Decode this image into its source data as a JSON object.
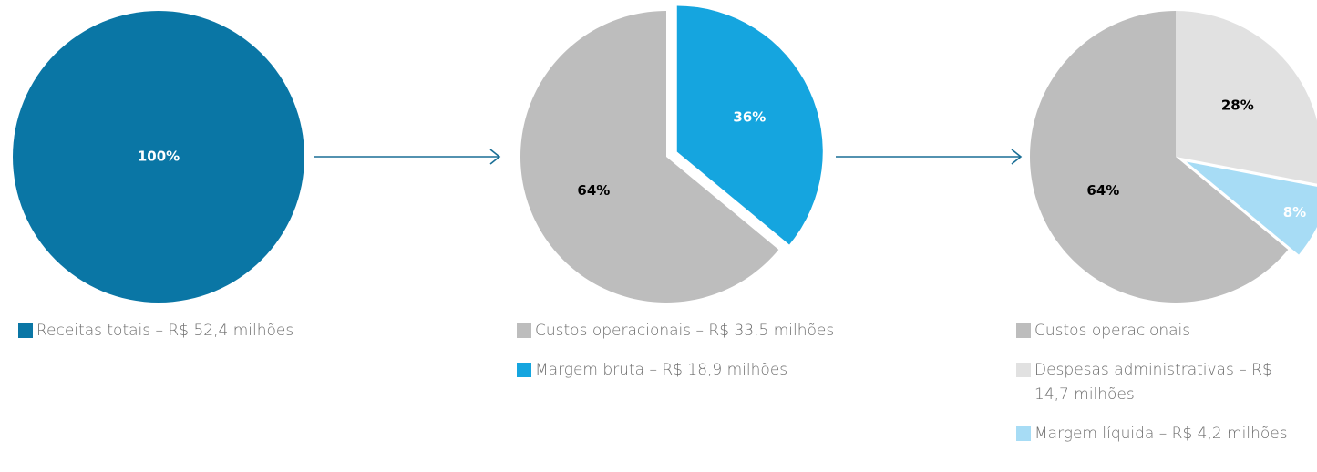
{
  "chart_data": [
    {
      "type": "pie",
      "categories": [
        "Receitas totais – R$ 52,4 milhões"
      ],
      "values": [
        100
      ],
      "value_labels": [
        "100%"
      ],
      "colors": [
        "#0a76a5"
      ],
      "label_colors": [
        "#ffffff"
      ],
      "exploded": [
        false
      ]
    },
    {
      "type": "pie",
      "categories": [
        "Custos operacionais – R$ 33,5 milhões",
        "Margem bruta – R$ 18,9 milhões"
      ],
      "values": [
        64,
        36
      ],
      "value_labels": [
        "64%",
        "36%"
      ],
      "colors": [
        "#bdbdbd",
        "#15a5df"
      ],
      "label_colors": [
        "#000000",
        "#ffffff"
      ],
      "exploded": [
        false,
        true
      ]
    },
    {
      "type": "pie",
      "categories": [
        "Custos operacionais",
        "Despesas administrativas – R$ 14,7 milhões",
        "Margem líquida – R$ 4,2 milhões"
      ],
      "values": [
        64,
        28,
        8
      ],
      "value_labels": [
        "64%",
        "28%",
        "8%"
      ],
      "colors": [
        "#bdbdbd",
        "#e1e1e1",
        "#a7dcf5"
      ],
      "label_colors": [
        "#000000",
        "#000000",
        "#ffffff"
      ],
      "exploded": [
        false,
        false,
        true
      ]
    }
  ]
}
